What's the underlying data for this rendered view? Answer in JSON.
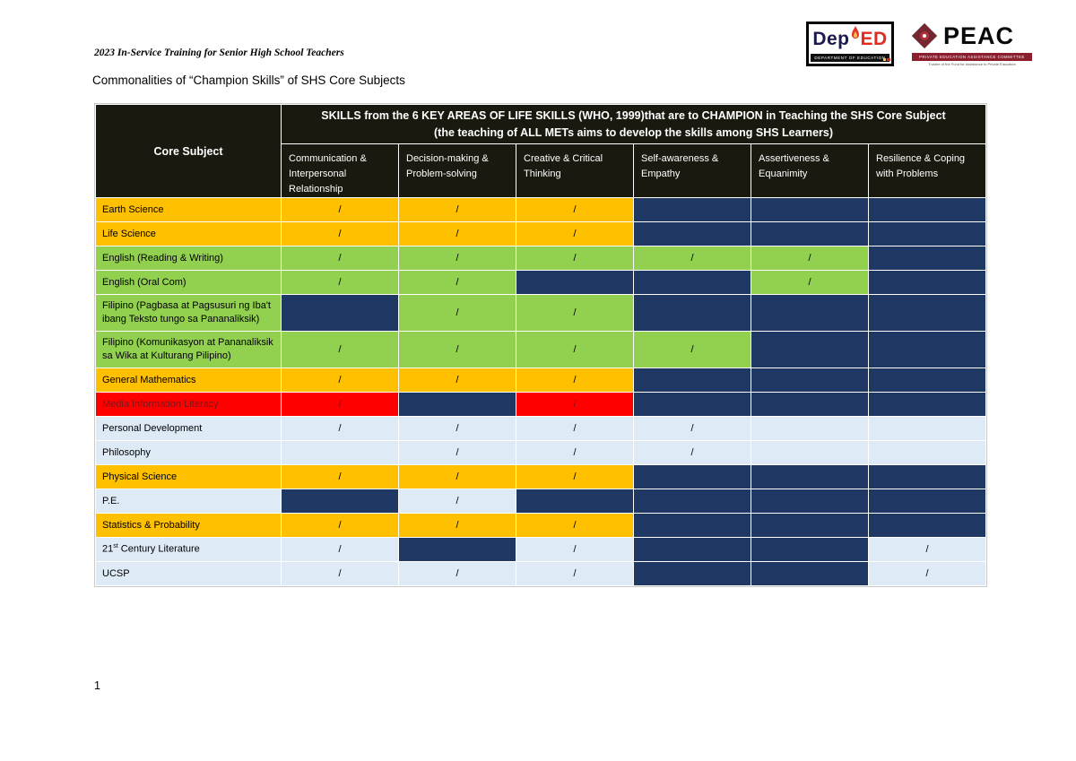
{
  "page": {
    "doc_header": "2023 In-Service Training for Senior High School Teachers",
    "title": "Commonalities of “Champion Skills” of SHS Core Subjects",
    "page_number": "1"
  },
  "logos": {
    "deped": {
      "dep": "Dep",
      "ed": "ED",
      "caption": "DEPARTMENT OF EDUCATION"
    },
    "peac": {
      "name": "PEAC",
      "caption": "PRIVATE EDUCATION ASSISTANCE COMMITTEE",
      "subcaption": "Trustee of the Fund for Assistance to Private Education"
    }
  },
  "colors": {
    "gold": "#FFC000",
    "green": "#92D050",
    "navy": "#1F3864",
    "red": "#FF0000",
    "red_text": "#7F1416",
    "pale": "#DEEBF7",
    "header_bg": "#1A190F"
  },
  "table": {
    "corner_header": "Core Subject",
    "band_line1": "SKILLS from the 6 KEY AREAS OF LIFE SKILLS (WHO, 1999)that are to CHAMPION in Teaching the SHS Core Subject",
    "band_line2": "(the teaching of ALL METs aims to develop the skills among SHS Learners)",
    "skill_columns": [
      "Communication & Interpersonal Relationship",
      "Decision-making & Problem-solving",
      "Creative & Critical Thinking",
      "Self-awareness & Empathy",
      "Assertiveness & Equanimity",
      "Resilience & Coping with Problems"
    ],
    "check_mark": "/",
    "rows": [
      {
        "label": "Earth Science",
        "bg": "gold",
        "cells": [
          {
            "bg": "gold",
            "mark": "/"
          },
          {
            "bg": "gold",
            "mark": "/"
          },
          {
            "bg": "gold",
            "mark": "/"
          },
          {
            "bg": "navy",
            "mark": ""
          },
          {
            "bg": "navy",
            "mark": ""
          },
          {
            "bg": "navy",
            "mark": ""
          }
        ]
      },
      {
        "label": "Life Science",
        "bg": "gold",
        "cells": [
          {
            "bg": "gold",
            "mark": "/"
          },
          {
            "bg": "gold",
            "mark": "/"
          },
          {
            "bg": "gold",
            "mark": "/"
          },
          {
            "bg": "navy",
            "mark": ""
          },
          {
            "bg": "navy",
            "mark": ""
          },
          {
            "bg": "navy",
            "mark": ""
          }
        ]
      },
      {
        "label": "English (Reading & Writing)",
        "bg": "green",
        "cells": [
          {
            "bg": "green",
            "mark": "/"
          },
          {
            "bg": "green",
            "mark": "/"
          },
          {
            "bg": "green",
            "mark": "/"
          },
          {
            "bg": "green",
            "mark": "/"
          },
          {
            "bg": "green",
            "mark": "/"
          },
          {
            "bg": "navy",
            "mark": ""
          }
        ]
      },
      {
        "label": "English (Oral Com)",
        "bg": "green",
        "cells": [
          {
            "bg": "green",
            "mark": "/"
          },
          {
            "bg": "green",
            "mark": "/"
          },
          {
            "bg": "navy",
            "mark": ""
          },
          {
            "bg": "navy",
            "mark": ""
          },
          {
            "bg": "green",
            "mark": "/"
          },
          {
            "bg": "navy",
            "mark": ""
          }
        ]
      },
      {
        "label": "Filipino (Pagbasa at Pagsusuri ng Iba't ibang Teksto tungo sa Pananaliksik)",
        "bg": "green",
        "tall": true,
        "cells": [
          {
            "bg": "navy",
            "mark": ""
          },
          {
            "bg": "green",
            "mark": "/"
          },
          {
            "bg": "green",
            "mark": "/"
          },
          {
            "bg": "navy",
            "mark": ""
          },
          {
            "bg": "navy",
            "mark": ""
          },
          {
            "bg": "navy",
            "mark": ""
          }
        ]
      },
      {
        "label": "Filipino (Komunikasyon at Pananaliksik sa Wika at Kulturang Pilipino)",
        "bg": "green",
        "tall": true,
        "cells": [
          {
            "bg": "green",
            "mark": "/"
          },
          {
            "bg": "green",
            "mark": "/"
          },
          {
            "bg": "green",
            "mark": "/"
          },
          {
            "bg": "green",
            "mark": "/"
          },
          {
            "bg": "navy",
            "mark": ""
          },
          {
            "bg": "navy",
            "mark": ""
          }
        ]
      },
      {
        "label": "General Mathematics",
        "bg": "gold",
        "cells": [
          {
            "bg": "gold",
            "mark": "/"
          },
          {
            "bg": "gold",
            "mark": "/"
          },
          {
            "bg": "gold",
            "mark": "/"
          },
          {
            "bg": "navy",
            "mark": ""
          },
          {
            "bg": "navy",
            "mark": ""
          },
          {
            "bg": "navy",
            "mark": ""
          }
        ]
      },
      {
        "label": "Media Information Literacy",
        "bg": "red",
        "cells": [
          {
            "bg": "red",
            "mark": "/"
          },
          {
            "bg": "navy",
            "mark": ""
          },
          {
            "bg": "red",
            "mark": "/"
          },
          {
            "bg": "navy",
            "mark": ""
          },
          {
            "bg": "navy",
            "mark": ""
          },
          {
            "bg": "navy",
            "mark": ""
          }
        ]
      },
      {
        "label": "Personal Development",
        "bg": "pale",
        "cells": [
          {
            "bg": "pale",
            "mark": "/"
          },
          {
            "bg": "pale",
            "mark": "/"
          },
          {
            "bg": "pale",
            "mark": "/"
          },
          {
            "bg": "pale",
            "mark": "/"
          },
          {
            "bg": "pale",
            "mark": ""
          },
          {
            "bg": "pale",
            "mark": ""
          }
        ]
      },
      {
        "label": "Philosophy",
        "bg": "pale",
        "cells": [
          {
            "bg": "pale",
            "mark": ""
          },
          {
            "bg": "pale",
            "mark": "/"
          },
          {
            "bg": "pale",
            "mark": "/"
          },
          {
            "bg": "pale",
            "mark": "/"
          },
          {
            "bg": "pale",
            "mark": ""
          },
          {
            "bg": "pale",
            "mark": ""
          }
        ]
      },
      {
        "label": "Physical Science",
        "bg": "gold",
        "cells": [
          {
            "bg": "gold",
            "mark": "/",
            "underline": true
          },
          {
            "bg": "gold",
            "mark": "/",
            "underline": true
          },
          {
            "bg": "gold",
            "mark": "/",
            "underline": true
          },
          {
            "bg": "navy",
            "mark": ""
          },
          {
            "bg": "navy",
            "mark": ""
          },
          {
            "bg": "navy",
            "mark": ""
          }
        ]
      },
      {
        "label": "P.E.",
        "bg": "pale",
        "cells": [
          {
            "bg": "navy",
            "mark": "",
            "underline": true
          },
          {
            "bg": "pale",
            "mark": "/"
          },
          {
            "bg": "navy",
            "mark": ""
          },
          {
            "bg": "navy",
            "mark": ""
          },
          {
            "bg": "navy",
            "mark": ""
          },
          {
            "bg": "navy",
            "mark": ""
          }
        ]
      },
      {
        "label": "Statistics & Probability",
        "bg": "gold",
        "cells": [
          {
            "bg": "gold",
            "mark": "/"
          },
          {
            "bg": "gold",
            "mark": "/"
          },
          {
            "bg": "gold",
            "mark": "/"
          },
          {
            "bg": "navy",
            "mark": ""
          },
          {
            "bg": "navy",
            "mark": ""
          },
          {
            "bg": "navy",
            "mark": ""
          }
        ]
      },
      {
        "label_pre": "21",
        "label_sup": "st",
        "label_post": " Century Literature",
        "bg": "pale",
        "cells": [
          {
            "bg": "pale",
            "mark": "/"
          },
          {
            "bg": "navy",
            "mark": ""
          },
          {
            "bg": "pale",
            "mark": "/"
          },
          {
            "bg": "navy",
            "mark": ""
          },
          {
            "bg": "navy",
            "mark": ""
          },
          {
            "bg": "pale",
            "mark": "/"
          }
        ]
      },
      {
        "label": "UCSP",
        "bg": "pale",
        "cells": [
          {
            "bg": "pale",
            "mark": "/"
          },
          {
            "bg": "pale",
            "mark": "/"
          },
          {
            "bg": "pale",
            "mark": "/"
          },
          {
            "bg": "navy",
            "mark": ""
          },
          {
            "bg": "navy",
            "mark": ""
          },
          {
            "bg": "pale",
            "mark": "/"
          }
        ]
      }
    ]
  }
}
